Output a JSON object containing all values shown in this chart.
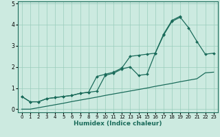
{
  "xlabel": "Humidex (Indice chaleur)",
  "ylabel": "",
  "bg_color": "#cceae0",
  "grid_color": "#99ccbb",
  "line_color": "#1a6b5a",
  "x_values": [
    0,
    1,
    2,
    3,
    4,
    5,
    6,
    7,
    8,
    9,
    10,
    11,
    12,
    13,
    14,
    15,
    16,
    17,
    18,
    19,
    20,
    21,
    22,
    23
  ],
  "line1": [
    0.6,
    0.35,
    0.35,
    0.5,
    0.55,
    0.6,
    0.65,
    0.75,
    0.8,
    1.55,
    1.65,
    1.75,
    1.95,
    2.5,
    2.55,
    2.6,
    2.65,
    3.5,
    4.15,
    4.35,
    3.85,
    3.2,
    2.6,
    2.65
  ],
  "line2": [
    0.6,
    0.35,
    0.35,
    0.5,
    0.55,
    0.6,
    0.65,
    0.75,
    0.8,
    0.85,
    1.6,
    1.7,
    1.9,
    2.0,
    1.6,
    1.65,
    2.65,
    3.55,
    4.2,
    4.4,
    null,
    null,
    null,
    null
  ],
  "line3": [
    0.0,
    0.0,
    0.07,
    0.14,
    0.21,
    0.28,
    0.36,
    0.43,
    0.5,
    0.57,
    0.65,
    0.72,
    0.79,
    0.86,
    0.93,
    1.0,
    1.08,
    1.15,
    1.22,
    1.3,
    1.37,
    1.44,
    1.72,
    1.75
  ],
  "ylim": [
    -0.15,
    5.1
  ],
  "xlim": [
    -0.5,
    23.5
  ],
  "xticks": [
    0,
    1,
    2,
    3,
    4,
    5,
    6,
    7,
    8,
    9,
    10,
    11,
    12,
    13,
    14,
    15,
    16,
    17,
    18,
    19,
    20,
    21,
    22,
    23
  ],
  "yticks": [
    0,
    1,
    2,
    3,
    4,
    5
  ],
  "xtick_fontsize": 5.0,
  "ytick_fontsize": 5.5,
  "xlabel_fontsize": 6.5,
  "marker": "D",
  "marker_size": 2.0,
  "linewidth": 0.9
}
